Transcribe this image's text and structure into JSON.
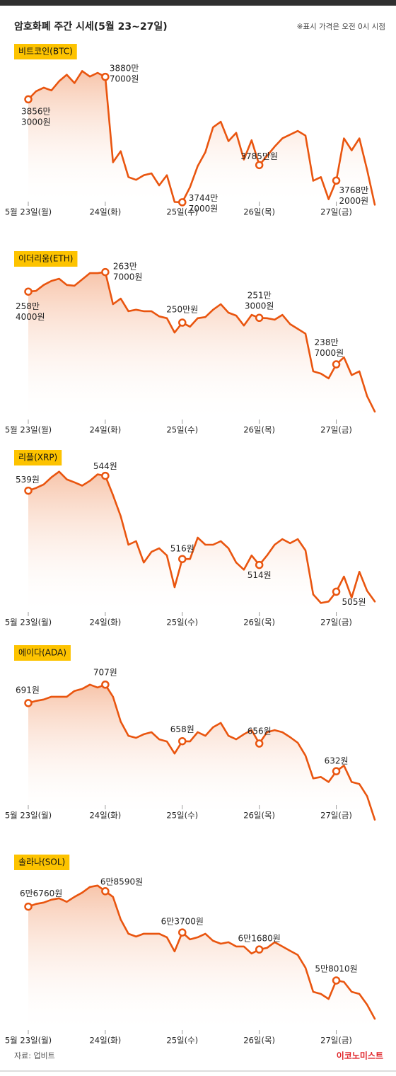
{
  "header": {
    "title": "암호화폐 주간 시세(5월 23~27일)",
    "note": "※표시 가격은 오전 0시 시점"
  },
  "chart_data": [
    {
      "type": "line",
      "title": "비트코인(BTC)",
      "categories": [
        "5월 23일(월)",
        null,
        null,
        null,
        null,
        null,
        null,
        null,
        null,
        null,
        "24일(화)",
        null,
        null,
        null,
        null,
        null,
        null,
        null,
        null,
        null,
        "25일(수)",
        null,
        null,
        null,
        null,
        null,
        null,
        null,
        null,
        null,
        "26일(목)",
        null,
        null,
        null,
        null,
        null,
        null,
        null,
        null,
        null,
        "27일(금)",
        null,
        null,
        null,
        null,
        null
      ],
      "ylim": [
        37400000,
        38950000
      ],
      "series": [
        {
          "color": "#e9550f",
          "values": [
            38563000,
            38650000,
            38690000,
            38660000,
            38760000,
            38830000,
            38740000,
            38870000,
            38810000,
            38850000,
            38807000,
            37880000,
            38000000,
            37720000,
            37690000,
            37740000,
            37760000,
            37630000,
            37740000,
            37450000,
            37447000,
            37610000,
            37840000,
            37990000,
            38260000,
            38320000,
            38110000,
            38200000,
            37910000,
            38120000,
            37850000,
            37950000,
            38050000,
            38140000,
            38180000,
            38220000,
            38170000,
            37680000,
            37720000,
            37480000,
            37682000,
            38140000,
            38010000,
            38140000,
            37800000,
            37420000
          ],
          "value_labels": [
            "3856만 3000원",
            null,
            null,
            null,
            null,
            null,
            null,
            null,
            null,
            null,
            "3880만 7000원",
            null,
            null,
            null,
            null,
            null,
            null,
            null,
            null,
            null,
            "3744만 7000원",
            null,
            null,
            null,
            null,
            null,
            null,
            null,
            null,
            null,
            "3785만원",
            null,
            null,
            null,
            null,
            null,
            null,
            null,
            null,
            null,
            "3768만 2000원",
            null,
            null,
            null,
            null,
            null
          ]
        }
      ]
    },
    {
      "type": "line",
      "title": "이더리움(ETH)",
      "categories": [
        "5월 23일(월)",
        null,
        null,
        null,
        null,
        null,
        null,
        null,
        null,
        null,
        "24일(화)",
        null,
        null,
        null,
        null,
        null,
        null,
        null,
        null,
        null,
        "25일(수)",
        null,
        null,
        null,
        null,
        null,
        null,
        null,
        null,
        null,
        "26일(목)",
        null,
        null,
        null,
        null,
        null,
        null,
        null,
        null,
        null,
        "27일(금)",
        null,
        null,
        null,
        null,
        null
      ],
      "ylim": [
        2228000,
        2640000
      ],
      "series": [
        {
          "color": "#e9550f",
          "values": [
            2584000,
            2586000,
            2602000,
            2613000,
            2619000,
            2602000,
            2600000,
            2617000,
            2634000,
            2634000,
            2637000,
            2550000,
            2565000,
            2531000,
            2535000,
            2531000,
            2531000,
            2517000,
            2512000,
            2473000,
            2500000,
            2489000,
            2512000,
            2515000,
            2535000,
            2550000,
            2527000,
            2519000,
            2492000,
            2521000,
            2513000,
            2512000,
            2508000,
            2521000,
            2496000,
            2483000,
            2470000,
            2368000,
            2362000,
            2349000,
            2387000,
            2406000,
            2358000,
            2368000,
            2301000,
            2259000
          ],
          "value_labels": [
            "258만 4000원",
            null,
            null,
            null,
            null,
            null,
            null,
            null,
            null,
            null,
            "263만 7000원",
            null,
            null,
            null,
            null,
            null,
            null,
            null,
            null,
            null,
            "250만원",
            null,
            null,
            null,
            null,
            null,
            null,
            null,
            null,
            null,
            "251만 3000원",
            null,
            null,
            null,
            null,
            null,
            null,
            null,
            null,
            null,
            "238만 7000원",
            null,
            null,
            null,
            null,
            null
          ]
        }
      ]
    },
    {
      "type": "line",
      "title": "리플(XRP)",
      "categories": [
        "5월 23일(월)",
        null,
        null,
        null,
        null,
        null,
        null,
        null,
        null,
        null,
        "24일(화)",
        null,
        null,
        null,
        null,
        null,
        null,
        null,
        null,
        null,
        "25일(수)",
        null,
        null,
        null,
        null,
        null,
        null,
        null,
        null,
        null,
        "26일(목)",
        null,
        null,
        null,
        null,
        null,
        null,
        null,
        null,
        null,
        "27일(금)",
        null,
        null,
        null,
        null,
        null
      ],
      "ylim": [
        497,
        547
      ],
      "series": [
        {
          "color": "#e9550f",
          "values": [
            539,
            539.9,
            541.1,
            543.5,
            545.4,
            542.8,
            541.8,
            540.7,
            542.3,
            544.5,
            544,
            537.5,
            530.4,
            520.8,
            522,
            514.8,
            518.4,
            519.6,
            517.2,
            506.5,
            516,
            516,
            523.2,
            520.8,
            520.8,
            522,
            519.6,
            514.8,
            512.4,
            517.2,
            514,
            517.2,
            520.8,
            522.7,
            521.3,
            522.7,
            518.9,
            504.1,
            501.2,
            501.7,
            505,
            510.1,
            503,
            511.7,
            505.3,
            501.7
          ],
          "value_labels": [
            "539원",
            null,
            null,
            null,
            null,
            null,
            null,
            null,
            null,
            null,
            "544원",
            null,
            null,
            null,
            null,
            null,
            null,
            null,
            null,
            null,
            "516원",
            null,
            null,
            null,
            null,
            null,
            null,
            null,
            null,
            null,
            "514원",
            null,
            null,
            null,
            null,
            null,
            null,
            null,
            null,
            null,
            "505원",
            null,
            null,
            null,
            null,
            null
          ]
        }
      ]
    },
    {
      "type": "line",
      "title": "에이다(ADA)",
      "categories": [
        "5월 23일(월)",
        null,
        null,
        null,
        null,
        null,
        null,
        null,
        null,
        null,
        "24일(화)",
        null,
        null,
        null,
        null,
        null,
        null,
        null,
        null,
        null,
        "25일(수)",
        null,
        null,
        null,
        null,
        null,
        null,
        null,
        null,
        null,
        "26일(목)",
        null,
        null,
        null,
        null,
        null,
        null,
        null,
        null,
        null,
        "27일(금)",
        null,
        null,
        null,
        null,
        null
      ],
      "ylim": [
        588,
        724
      ],
      "series": [
        {
          "color": "#e9550f",
          "values": [
            691,
            692.9,
            694.1,
            696.5,
            696.5,
            696.5,
            701.5,
            703.3,
            707,
            704.5,
            707,
            696.5,
            675,
            662.7,
            660.9,
            664,
            665.8,
            659.6,
            657.8,
            647.3,
            658,
            657.8,
            665.8,
            662.7,
            670.1,
            673.8,
            662.7,
            659.6,
            664,
            667.6,
            656,
            665.8,
            667.6,
            665.8,
            661.5,
            656.6,
            645.5,
            625.8,
            627,
            622.7,
            632,
            636.9,
            622.7,
            620.9,
            610.4,
            590
          ],
          "value_labels": [
            "691원",
            null,
            null,
            null,
            null,
            null,
            null,
            null,
            null,
            null,
            "707원",
            null,
            null,
            null,
            null,
            null,
            null,
            null,
            null,
            null,
            "658원",
            null,
            null,
            null,
            null,
            null,
            null,
            null,
            null,
            null,
            "656원",
            null,
            null,
            null,
            null,
            null,
            null,
            null,
            null,
            null,
            "632원",
            null,
            null,
            null,
            null,
            null
          ]
        }
      ]
    },
    {
      "type": "line",
      "title": "솔라나(SOL)",
      "categories": [
        "5월 23일(월)",
        null,
        null,
        null,
        null,
        null,
        null,
        null,
        null,
        null,
        "24일(화)",
        null,
        null,
        null,
        null,
        null,
        null,
        null,
        null,
        null,
        "25일(수)",
        null,
        null,
        null,
        null,
        null,
        null,
        null,
        null,
        null,
        "26일(목)",
        null,
        null,
        null,
        null,
        null,
        null,
        null,
        null,
        null,
        "27일(금)",
        null,
        null,
        null,
        null,
        null
      ],
      "ylim": [
        51800,
        70500
      ],
      "series": [
        {
          "color": "#e9550f",
          "values": [
            66760,
            67080,
            67250,
            67580,
            67750,
            67330,
            67920,
            68420,
            69090,
            69260,
            68590,
            67920,
            65230,
            63550,
            63210,
            63550,
            63550,
            63550,
            63130,
            61450,
            63700,
            62880,
            63130,
            63550,
            62710,
            62370,
            62540,
            62040,
            62040,
            61200,
            61680,
            61870,
            62540,
            62040,
            61530,
            61030,
            59520,
            56660,
            56410,
            55820,
            58010,
            57840,
            56660,
            56410,
            55150,
            53470
          ],
          "value_labels": [
            "6만6760원",
            null,
            null,
            null,
            null,
            null,
            null,
            null,
            null,
            null,
            "6만8590원",
            null,
            null,
            null,
            null,
            null,
            null,
            null,
            null,
            null,
            "6만3700원",
            null,
            null,
            null,
            null,
            null,
            null,
            null,
            null,
            null,
            "6만1680원",
            null,
            null,
            null,
            null,
            null,
            null,
            null,
            null,
            null,
            "5만8010원",
            null,
            null,
            null,
            null,
            null
          ]
        }
      ]
    }
  ],
  "footer": {
    "source": "자료: 업비트",
    "logo": "이코노미스트"
  }
}
